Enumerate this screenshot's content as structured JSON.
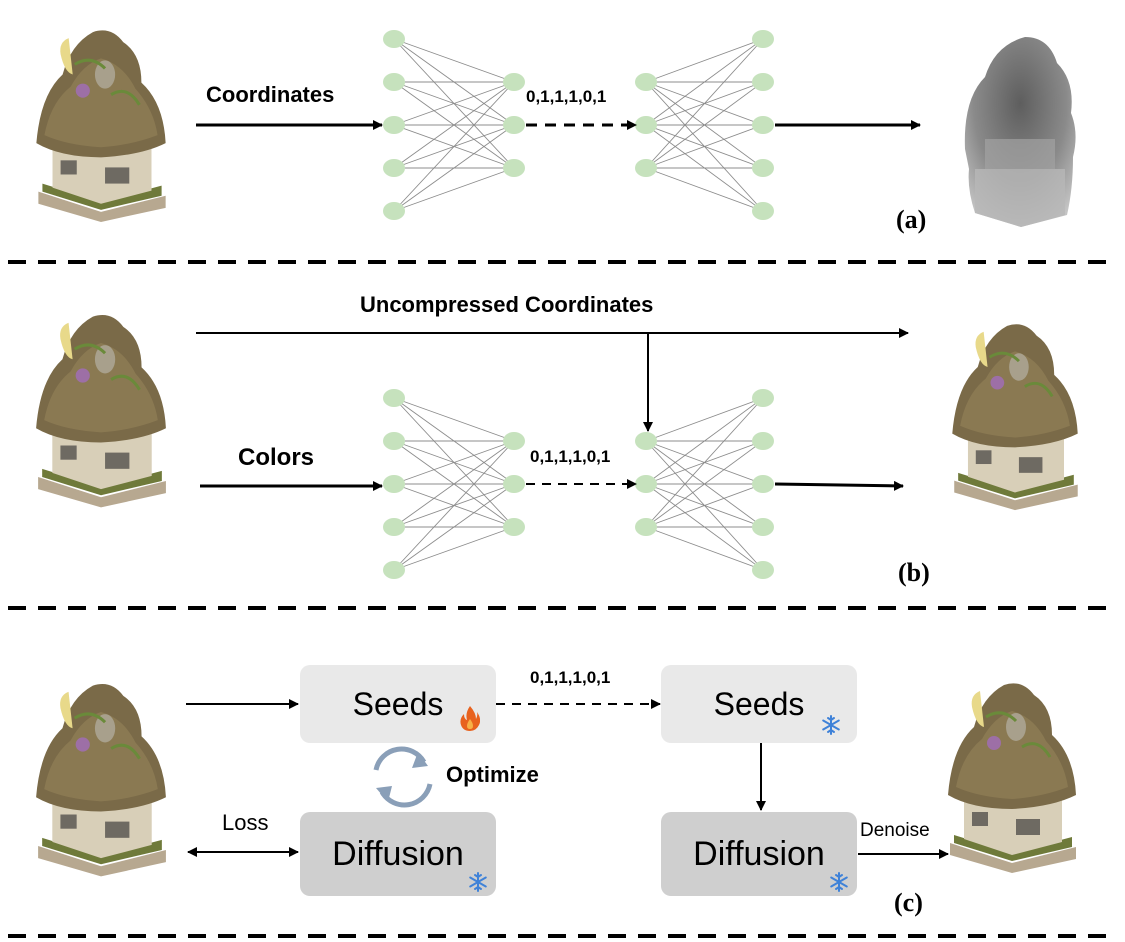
{
  "panels": {
    "a": {
      "tag": "(a)",
      "input_label": "Coordinates",
      "bits": "0,1,1,1,0,1"
    },
    "b": {
      "tag": "(b)",
      "top_label": "Uncompressed Coordinates",
      "input_label": "Colors",
      "bits": "0,1,1,1,0,1"
    },
    "c": {
      "tag": "(c)",
      "seeds_left": "Seeds",
      "seeds_right": "Seeds",
      "diffusion_left": "Diffusion",
      "diffusion_right": "Diffusion",
      "optimize_label": "Optimize",
      "loss_label": "Loss",
      "denoise_label": "Denoise",
      "bits": "0,1,1,1,0,1"
    }
  },
  "colors": {
    "node": "#c6e2bd",
    "edge": "#8c8c8c",
    "seed_box": "#e9e9e9",
    "diffusion_box": "#cfcfcf",
    "fire": "#e8621e",
    "snowflake": "#3f82d8",
    "cycle_arrows": "#8a9fb8"
  },
  "icons": [
    "house-model-icon",
    "depth-map-icon",
    "fire-icon",
    "snowflake-icon",
    "cycle-arrows-icon"
  ]
}
